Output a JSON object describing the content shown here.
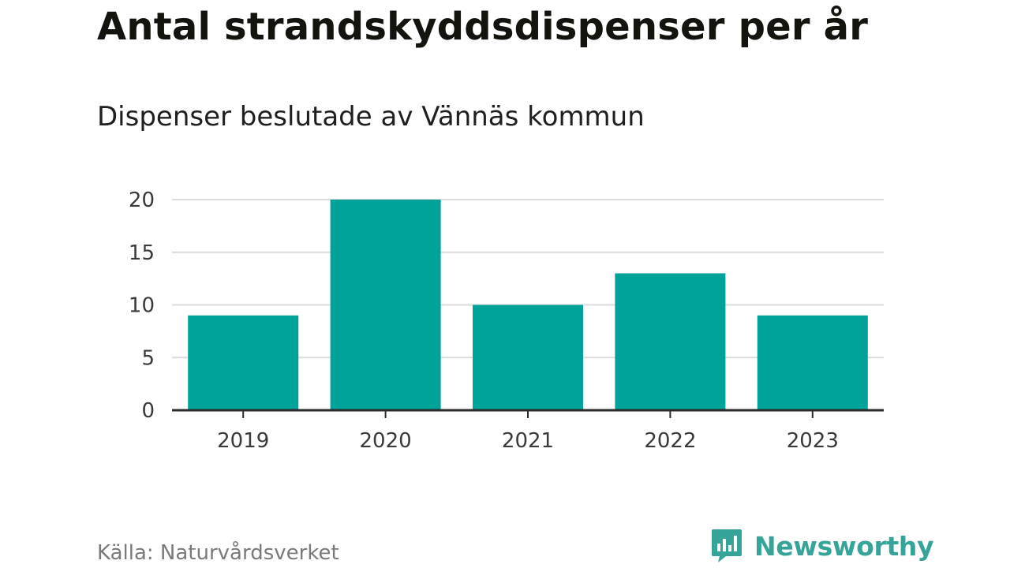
{
  "title": "Antal strandskyddsdispenser per år",
  "subtitle": "Dispenser beslutade av Vännäs kommun",
  "source": "Källa: Naturvårdsverket",
  "brand": {
    "name": "Newsworthy",
    "icon": "newsworthy-logo-icon",
    "color": "#37a49a"
  },
  "colors": {
    "bar": "#00a398",
    "grid": "#dcdcdc",
    "axis": "#2b2b2b"
  },
  "chart_data": {
    "type": "bar",
    "title": "Antal strandskyddsdispenser per år",
    "subtitle": "Dispenser beslutade av Vännäs kommun",
    "categories": [
      "2019",
      "2020",
      "2021",
      "2022",
      "2023"
    ],
    "values": [
      9,
      20,
      10,
      13,
      9
    ],
    "xlabel": "",
    "ylabel": "",
    "ylim": [
      0,
      20
    ],
    "yticks": [
      "0",
      "5",
      "10",
      "15",
      "20"
    ],
    "grid": true,
    "legend": "none"
  }
}
